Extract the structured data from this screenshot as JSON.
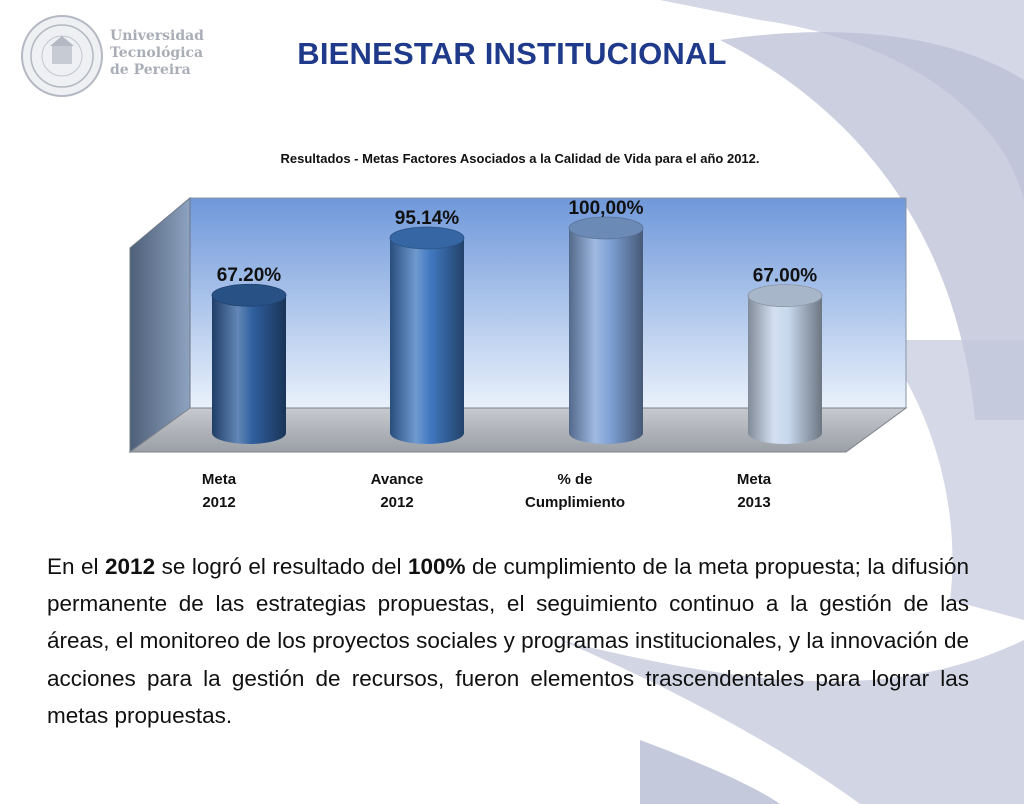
{
  "header": {
    "title": "BIENESTAR INSTITUCIONAL",
    "logo": {
      "icon": "university-seal-icon",
      "lines": [
        "Universidad",
        "Tecnológica",
        "de Pereira"
      ]
    }
  },
  "chart_data": {
    "type": "bar",
    "title": "Resultados - Metas Factores Asociados a la Calidad de Vida para el año 2012.",
    "categories": [
      [
        "Meta",
        "2012"
      ],
      [
        "Avance",
        "2012"
      ],
      [
        "% de",
        "Cumplimiento"
      ],
      [
        "Meta",
        "2013"
      ]
    ],
    "values": [
      67.2,
      95.14,
      100,
      67.0
    ],
    "data_labels": [
      "67.20%",
      "95.14%",
      "100,00%",
      "67.00%"
    ],
    "colors": [
      "#2f5f9e",
      "#3f78c0",
      "#7fa2d6",
      "#c6d6ec"
    ],
    "ylim": [
      0,
      100
    ],
    "grid": false,
    "legend": "none",
    "style": "3d-cylinder"
  },
  "body": {
    "segments": [
      {
        "text": "En el ",
        "bold": false
      },
      {
        "text": "2012",
        "bold": true
      },
      {
        "text": " se logró el resultado del ",
        "bold": false
      },
      {
        "text": "100%",
        "bold": true
      },
      {
        "text": " de cumplimiento de la meta propuesta; la difusión permanente de las estrategias propuestas, el seguimiento continuo a la gestión de las áreas, el monitoreo de los proyectos sociales y programas institucionales, y la innovación de acciones para la gestión de recursos, fueron elementos trascendentales para lograr las metas propuestas.",
        "bold": false
      }
    ]
  }
}
